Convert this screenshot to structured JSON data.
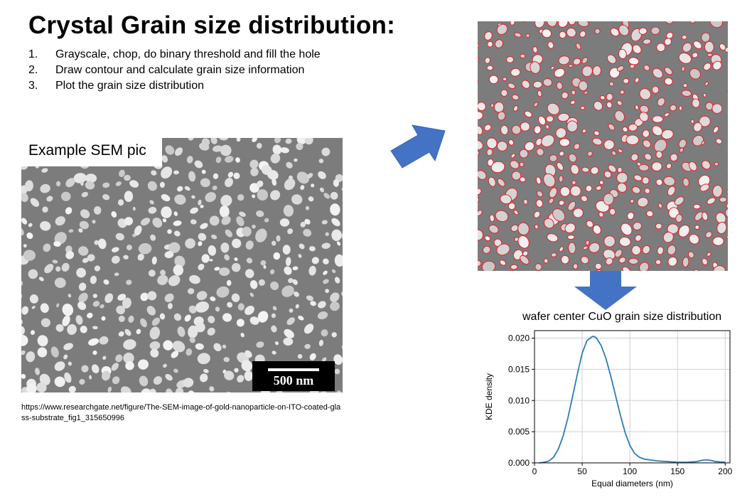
{
  "header": {
    "title": "Crystal Grain size distribution:"
  },
  "steps": [
    {
      "num": "1.",
      "text": "Grayscale, chop, do binary threshold and fill the hole"
    },
    {
      "num": "2.",
      "text": "Draw contour and calculate grain size information"
    },
    {
      "num": "3.",
      "text": "Plot the grain size distribution"
    }
  ],
  "sem_left": {
    "label": "Example SEM pic",
    "scale_bar": "500 nm",
    "source": "https://www.researchgate.net/figure/The-SEM-image-of-gold-nanoparticle-on-ITO-coated-glass-substrate_fig1_315650996"
  },
  "colors": {
    "arrow": "#4472c4",
    "contour": "#e8202a",
    "line": "#2a7db5",
    "grain": "#d9d9d9",
    "substrate": "#7c7c7c"
  },
  "icons": {
    "arrow_diag": "arrow-up-right-icon",
    "arrow_down": "arrow-down-icon"
  },
  "chart_data": {
    "type": "line",
    "title": "wafer center CuO grain size distribution",
    "xlabel": "Equal diameters (nm)",
    "ylabel": "KDE density",
    "xlim": [
      0,
      205
    ],
    "ylim": [
      0,
      0.0212
    ],
    "xticks": [
      0,
      50,
      100,
      150,
      200
    ],
    "yticks": [
      0.0,
      0.005,
      0.01,
      0.015,
      0.02
    ],
    "ytick_labels": [
      "0.000",
      "0.005",
      "0.010",
      "0.015",
      "0.020"
    ],
    "grid": true,
    "series": [
      {
        "x": [
          5,
          10,
          15,
          20,
          25,
          30,
          35,
          40,
          45,
          50,
          55,
          60,
          62,
          65,
          70,
          75,
          80,
          85,
          90,
          95,
          100,
          105,
          110,
          115,
          120,
          125,
          130,
          140,
          150,
          160,
          170,
          175,
          180,
          185,
          190,
          200
        ],
        "y": [
          0.0,
          0.0001,
          0.0003,
          0.0009,
          0.0022,
          0.0043,
          0.0072,
          0.0107,
          0.0143,
          0.0176,
          0.0196,
          0.0202,
          0.0203,
          0.02,
          0.0188,
          0.0167,
          0.0139,
          0.0108,
          0.0077,
          0.0049,
          0.0028,
          0.0015,
          0.0009,
          0.0006,
          0.0005,
          0.0004,
          0.0003,
          0.0002,
          0.0001,
          0.0001,
          0.0002,
          0.0004,
          0.0005,
          0.0004,
          0.0002,
          0.0001
        ]
      }
    ]
  }
}
